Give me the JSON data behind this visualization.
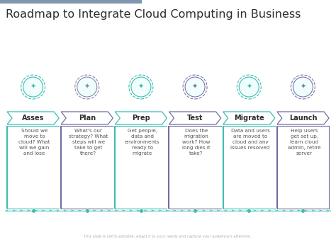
{
  "title": "Roadmap to Integrate Cloud Computing in Business",
  "title_fontsize": 11.5,
  "title_color": "#2d2d2d",
  "background_color": "#ffffff",
  "steps": [
    "Asses",
    "Plan",
    "Prep",
    "Test",
    "Migrate",
    "Launch"
  ],
  "descriptions": [
    "Should we\nmove to\ncloud? What\nwill we gain\nand lose",
    "What's our\nstrategy? What\nsteps will we\ntake to get\nthere?",
    "Get people,\ndata and\nenvironments\nready to\nmigrate",
    "Does the\nmigration\nwork? How\nlong dies it\ntake?",
    "Data and users\nare moved to\ncloud and any\nissues resolved",
    "Help users\nget set up,\nlearn cloud\nadmin, retire\nserver"
  ],
  "chevron_fill": "#ffffff",
  "chevron_borders": [
    "#3dbcb0",
    "#6e6ea0",
    "#3dbcb0",
    "#6e6ea0",
    "#3dbcb0",
    "#6e6ea0"
  ],
  "chevron_text_color": "#2d2d2d",
  "chevron_fontsize": 7,
  "box_left_border_colors": [
    "#3dbcb0",
    "#6e6ea0",
    "#3dbcb0",
    "#6e6ea0",
    "#3dbcb0",
    "#6e6ea0"
  ],
  "box_bg_color": "#ffffff",
  "desc_text_color": "#555555",
  "desc_fontsize": 5.2,
  "timeline_color": "#3dbcb0",
  "footer_text": "This slide is 100% editable. Adapt it to your needs and capture your audience's attention.",
  "top_bar_color": "#8096b0",
  "icon_outer_border_color": "#3dbcb0",
  "icon_fill_color": "#f0fefe",
  "icon_inner_color": "#3dbcb0",
  "icon_border_colors": [
    "#3dbcb0",
    "#8888aa",
    "#3dbcb0",
    "#7777aa",
    "#3dbcb0",
    "#7777aa"
  ]
}
